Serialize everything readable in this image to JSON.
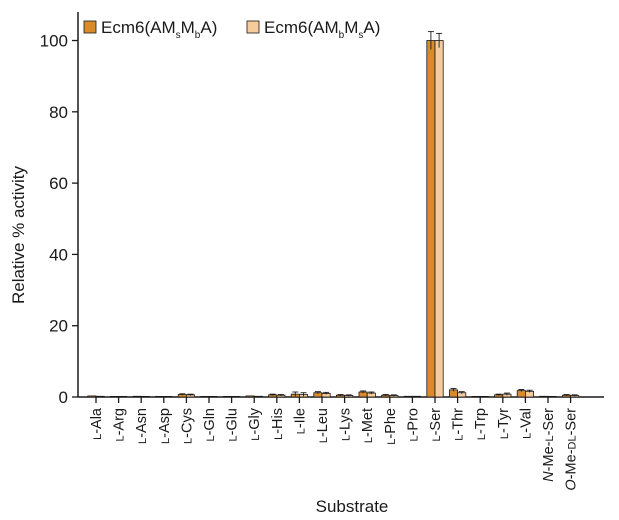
{
  "chart_data": {
    "type": "bar",
    "title": "",
    "xlabel": "Substrate",
    "ylabel": "Relative % activity",
    "ylim": [
      0,
      108
    ],
    "yticks": [
      0,
      20,
      40,
      60,
      80,
      100
    ],
    "grid": false,
    "legend_position": "top-left",
    "categories": [
      "L-Ala",
      "L-Arg",
      "L-Asn",
      "L-Asp",
      "L-Cys",
      "L-Gln",
      "L-Glu",
      "L-Gly",
      "L-His",
      "L-Ile",
      "L-Leu",
      "L-Lys",
      "L-Met",
      "L-Phe",
      "L-Pro",
      "L-Ser",
      "L-Thr",
      "L-Trp",
      "L-Tyr",
      "L-Val",
      "N-Me-L-Ser",
      "O-Me-DL-Ser"
    ],
    "series": [
      {
        "name": "Ecm6(AMsMbA)",
        "color": "#d98a2b",
        "values": [
          0.3,
          0.1,
          0.2,
          0.1,
          0.7,
          0.1,
          0.1,
          0.3,
          0.6,
          0.8,
          1.2,
          0.5,
          1.4,
          0.5,
          0.2,
          100,
          2.0,
          0.1,
          0.6,
          1.8,
          0.2,
          0.5
        ],
        "errors": [
          0.1,
          0.05,
          0.05,
          0.05,
          0.2,
          0.05,
          0.05,
          0.1,
          0.2,
          0.6,
          0.3,
          0.2,
          0.3,
          0.2,
          0.05,
          2.5,
          0.4,
          0.05,
          0.2,
          0.3,
          0.05,
          0.2
        ]
      },
      {
        "name": "Ecm6(AMbMsA)",
        "color": "#f7cc9b",
        "values": [
          0.2,
          0.1,
          0.1,
          0.1,
          0.6,
          0.1,
          0.1,
          0.2,
          0.5,
          0.7,
          1.0,
          0.4,
          1.1,
          0.4,
          0.2,
          100,
          1.2,
          0.1,
          0.8,
          1.6,
          0.1,
          0.4
        ],
        "errors": [
          0.1,
          0.05,
          0.05,
          0.05,
          0.2,
          0.05,
          0.05,
          0.1,
          0.2,
          0.5,
          0.3,
          0.2,
          0.3,
          0.2,
          0.05,
          2.0,
          0.3,
          0.05,
          0.3,
          0.3,
          0.05,
          0.2
        ]
      }
    ]
  },
  "legend": {
    "s1_prefix": "Ecm6(AM",
    "s1_sub1": "s",
    "s1_mid": "M",
    "s1_sub2": "b",
    "s1_suffix": "A)",
    "s2_prefix": "Ecm6(AM",
    "s2_sub1": "b",
    "s2_mid": "M",
    "s2_sub2": "s",
    "s2_suffix": "A)"
  },
  "category_labels": [
    {
      "pre": "",
      "small": "L",
      "post": "-Ala"
    },
    {
      "pre": "",
      "small": "L",
      "post": "-Arg"
    },
    {
      "pre": "",
      "small": "L",
      "post": "-Asn"
    },
    {
      "pre": "",
      "small": "L",
      "post": "-Asp"
    },
    {
      "pre": "",
      "small": "L",
      "post": "-Cys"
    },
    {
      "pre": "",
      "small": "L",
      "post": "-Gln"
    },
    {
      "pre": "",
      "small": "L",
      "post": "-Glu"
    },
    {
      "pre": "",
      "small": "L",
      "post": "-Gly"
    },
    {
      "pre": "",
      "small": "L",
      "post": "-His"
    },
    {
      "pre": "",
      "small": "L",
      "post": "-Ile"
    },
    {
      "pre": "",
      "small": "L",
      "post": "-Leu"
    },
    {
      "pre": "",
      "small": "L",
      "post": "-Lys"
    },
    {
      "pre": "",
      "small": "L",
      "post": "-Met"
    },
    {
      "pre": "",
      "small": "L",
      "post": "-Phe"
    },
    {
      "pre": "",
      "small": "L",
      "post": "-Pro"
    },
    {
      "pre": "",
      "small": "L",
      "post": "-Ser"
    },
    {
      "pre": "",
      "small": "L",
      "post": "-Thr"
    },
    {
      "pre": "",
      "small": "L",
      "post": "-Trp"
    },
    {
      "pre": "",
      "small": "L",
      "post": "-Tyr"
    },
    {
      "pre": "",
      "small": "L",
      "post": "-Val"
    },
    {
      "pre": "N-Me-",
      "small": "L",
      "post": "-Ser"
    },
    {
      "pre": "O-Me-",
      "small": "DL",
      "post": "-Ser"
    }
  ]
}
